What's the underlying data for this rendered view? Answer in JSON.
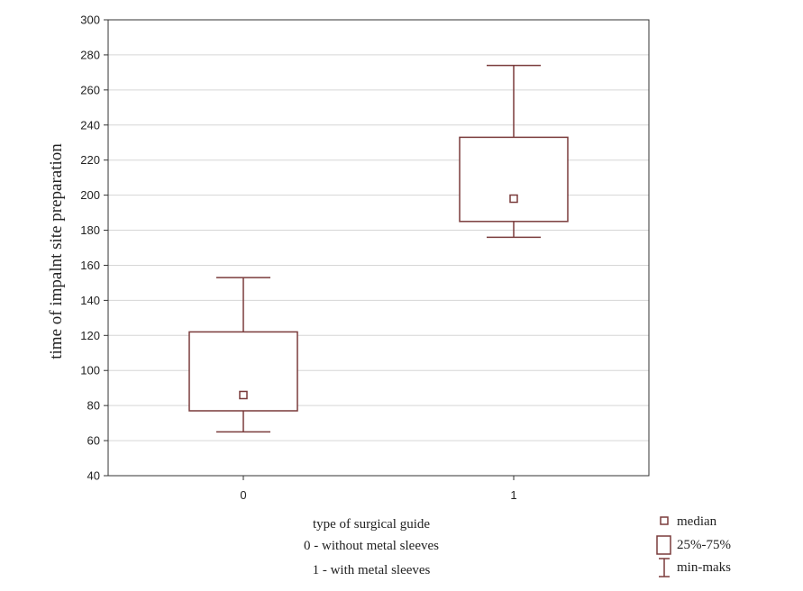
{
  "chart_data": {
    "type": "box",
    "ylabel": "time of impalnt site preparation",
    "ylim": [
      40,
      300
    ],
    "yticks": [
      40,
      60,
      80,
      100,
      120,
      140,
      160,
      180,
      200,
      220,
      240,
      260,
      280,
      300
    ],
    "categories": [
      "0",
      "1"
    ],
    "grid": true,
    "boxes": [
      {
        "category": "0",
        "min": 65,
        "q1": 77,
        "median": 86,
        "q3": 122,
        "max": 153
      },
      {
        "category": "1",
        "min": 176,
        "q1": 185,
        "median": 198,
        "q3": 233,
        "max": 274
      }
    ],
    "xnote": [
      "type of surgical guide",
      "0 - without metal sleeves",
      "1 - with metal sleeves"
    ],
    "legend": [
      "median",
      "25%-75%",
      "min-maks"
    ],
    "colors": {
      "box": "#7a3b3b",
      "grid": "#d6d6d6",
      "axis": "#333333"
    }
  }
}
